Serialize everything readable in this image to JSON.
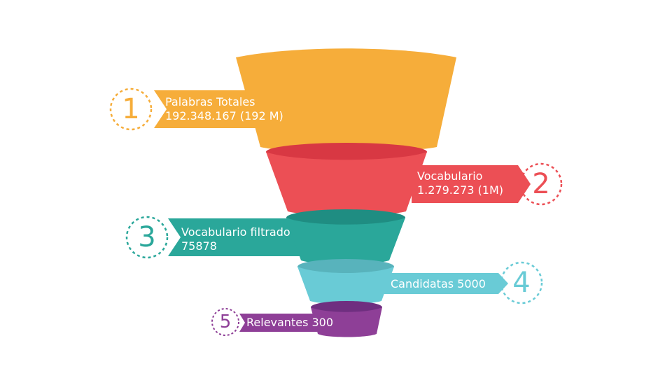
{
  "colors": {
    "orange": "#F6AD3A",
    "red": "#EC4F55",
    "teal": "#2AA79A",
    "cyan": "#69CBD6",
    "purple": "#8E3F97",
    "background": "#FFFFFF"
  },
  "stages": [
    {
      "number": "1",
      "line1": "Palabras Totales",
      "line2": "192.348.167 (192 M)",
      "color": "#F6AD3A"
    },
    {
      "number": "2",
      "line1": "Vocabulario",
      "line2": "1.279.273 (1M)",
      "color": "#EC4F55"
    },
    {
      "number": "3",
      "line1": "Vocabulario filtrado",
      "line2": "75878",
      "color": "#2AA79A"
    },
    {
      "number": "4",
      "line1": "Candidatas 5000",
      "line2": "",
      "color": "#69CBD6"
    },
    {
      "number": "5",
      "line1": "Relevantes 300",
      "line2": "",
      "color": "#8E3F97"
    }
  ]
}
